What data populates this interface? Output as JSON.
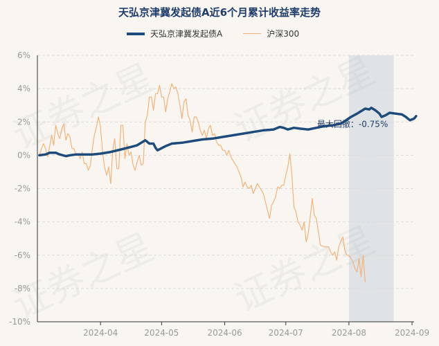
{
  "chart_data": {
    "type": "line",
    "title": "天弘京津冀发起债A近6个月累计收益率走势",
    "ylim": [
      -10,
      6
    ],
    "yticks": [
      "6%",
      "4%",
      "2%",
      "0%",
      "-2%",
      "-4%",
      "-6%",
      "-8%",
      "-10%"
    ],
    "ytick_values": [
      6,
      4,
      2,
      0,
      -2,
      -4,
      -6,
      -8,
      -10
    ],
    "xticks": [
      "2024-04",
      "2024-05",
      "2024-06",
      "2024-07",
      "2024-08",
      "2024-09"
    ],
    "xtick_days": [
      30,
      60,
      91,
      121,
      152,
      183
    ],
    "x_range_days": [
      -1,
      184
    ],
    "series": [
      {
        "name": "天弘京津冀发起债A",
        "color": "#1d4b7c",
        "points": [
          [
            0,
            0
          ],
          [
            3,
            0.05
          ],
          [
            5,
            0.15
          ],
          [
            8,
            0.15
          ],
          [
            10,
            0.05
          ],
          [
            13,
            -0.05
          ],
          [
            15,
            0
          ],
          [
            18,
            0.05
          ],
          [
            22,
            0.05
          ],
          [
            26,
            0.05
          ],
          [
            30,
            0.1
          ],
          [
            35,
            0.2
          ],
          [
            40,
            0.35
          ],
          [
            45,
            0.5
          ],
          [
            48,
            0.6
          ],
          [
            50,
            0.75
          ],
          [
            52,
            0.9
          ],
          [
            54,
            0.7
          ],
          [
            56,
            0.7
          ],
          [
            57,
            0.45
          ],
          [
            58,
            0.3
          ],
          [
            62,
            0.55
          ],
          [
            65,
            0.7
          ],
          [
            70,
            0.75
          ],
          [
            75,
            0.85
          ],
          [
            80,
            0.95
          ],
          [
            85,
            1.0
          ],
          [
            90,
            1.1
          ],
          [
            95,
            1.2
          ],
          [
            100,
            1.3
          ],
          [
            105,
            1.4
          ],
          [
            110,
            1.5
          ],
          [
            115,
            1.55
          ],
          [
            118,
            1.7
          ],
          [
            120,
            1.65
          ],
          [
            122,
            1.55
          ],
          [
            125,
            1.65
          ],
          [
            128,
            1.6
          ],
          [
            132,
            1.55
          ],
          [
            136,
            1.65
          ],
          [
            140,
            1.75
          ],
          [
            144,
            1.8
          ],
          [
            148,
            1.9
          ],
          [
            150,
            2.05
          ],
          [
            153,
            2.3
          ],
          [
            156,
            2.5
          ],
          [
            158,
            2.65
          ],
          [
            160,
            2.8
          ],
          [
            162,
            2.75
          ],
          [
            163,
            2.85
          ],
          [
            165,
            2.7
          ],
          [
            167,
            2.5
          ],
          [
            168,
            2.3
          ],
          [
            170,
            2.4
          ],
          [
            172,
            2.55
          ],
          [
            175,
            2.5
          ],
          [
            178,
            2.45
          ],
          [
            180,
            2.3
          ],
          [
            182,
            2.1
          ],
          [
            184,
            2.2
          ],
          [
            185,
            2.35
          ]
        ]
      },
      {
        "name": "沪深300",
        "color": "#f2b37a",
        "points": [
          [
            0,
            0
          ],
          [
            1,
            0.4
          ],
          [
            2,
            0.7
          ],
          [
            3,
            0.4
          ],
          [
            4,
            -0.1
          ],
          [
            5,
            0.5
          ],
          [
            6,
            1.2
          ],
          [
            7,
            0.6
          ],
          [
            8,
            1.8
          ],
          [
            9,
            1.3
          ],
          [
            10,
            1.0
          ],
          [
            11,
            1.6
          ],
          [
            12,
            1.9
          ],
          [
            13,
            0.9
          ],
          [
            14,
            1.3
          ],
          [
            15,
            1.1
          ],
          [
            16,
            0.4
          ],
          [
            17,
            0.4
          ],
          [
            18,
            0
          ],
          [
            19,
            0.1
          ],
          [
            20,
            -0.2
          ],
          [
            21,
            0.2
          ],
          [
            22,
            -0.5
          ],
          [
            23,
            -0.5
          ],
          [
            24,
            -0.9
          ],
          [
            25,
            -0.6
          ],
          [
            26,
            0.4
          ],
          [
            27,
            1.2
          ],
          [
            28,
            1.7
          ],
          [
            29,
            2.3
          ],
          [
            30,
            1.7
          ],
          [
            31,
            0.2
          ],
          [
            32,
            -0.7
          ],
          [
            33,
            -1.2
          ],
          [
            34,
            -0.7
          ],
          [
            35,
            -1.7
          ],
          [
            36,
            0.3
          ],
          [
            37,
            1.0
          ],
          [
            38,
            -0.8
          ],
          [
            39,
            -0.8
          ],
          [
            40,
            1.8
          ],
          [
            41,
            1.8
          ],
          [
            42,
            -0.2
          ],
          [
            43,
            0.7
          ],
          [
            44,
            0
          ],
          [
            45,
            0.2
          ],
          [
            46,
            -0.6
          ],
          [
            47,
            -0.9
          ],
          [
            48,
            -0.4
          ],
          [
            49,
            0
          ],
          [
            50,
            -0.6
          ],
          [
            51,
            -0.5
          ],
          [
            52,
            2.0
          ],
          [
            53,
            2.4
          ],
          [
            54,
            3.5
          ],
          [
            55,
            3.5
          ],
          [
            56,
            2.7
          ],
          [
            57,
            3.7
          ],
          [
            58,
            3.7
          ],
          [
            59,
            4.2
          ],
          [
            60,
            3.5
          ],
          [
            61,
            3.5
          ],
          [
            62,
            2.6
          ],
          [
            63,
            3.4
          ],
          [
            64,
            3.8
          ],
          [
            65,
            4.3
          ],
          [
            66,
            4.0
          ],
          [
            67,
            4.1
          ],
          [
            68,
            3.7
          ],
          [
            69,
            3.0
          ],
          [
            70,
            2.2
          ],
          [
            71,
            3.2
          ],
          [
            72,
            3.4
          ],
          [
            73,
            2.4
          ],
          [
            74,
            2.1
          ],
          [
            75,
            1.4
          ],
          [
            76,
            2.3
          ],
          [
            77,
            2.3
          ],
          [
            78,
            2.0
          ],
          [
            79,
            1.5
          ],
          [
            80,
            1.2
          ],
          [
            81,
            1.5
          ],
          [
            82,
            1.0
          ],
          [
            83,
            1.6
          ],
          [
            84,
            1.8
          ],
          [
            85,
            1.2
          ],
          [
            86,
            1.3
          ],
          [
            87,
            0.8
          ],
          [
            88,
            0.6
          ],
          [
            89,
            0.6
          ],
          [
            90,
            0.3
          ],
          [
            91,
            0.3
          ],
          [
            92,
            0
          ],
          [
            93,
            0.3
          ],
          [
            94,
            -0.1
          ],
          [
            95,
            -0.3
          ],
          [
            96,
            -0.5
          ],
          [
            97,
            -0.7
          ],
          [
            98,
            -1.0
          ],
          [
            99,
            -1.3
          ],
          [
            100,
            -1.9
          ],
          [
            101,
            -1.6
          ],
          [
            102,
            -1.9
          ],
          [
            103,
            -2.0
          ],
          [
            104,
            -1.8
          ],
          [
            105,
            -2.3
          ],
          [
            106,
            -2.0
          ],
          [
            107,
            -1.7
          ],
          [
            108,
            -1.9
          ],
          [
            109,
            -2.1
          ],
          [
            110,
            -2.3
          ],
          [
            111,
            -2.8
          ],
          [
            112,
            -3.3
          ],
          [
            113,
            -3.8
          ],
          [
            114,
            -3.0
          ],
          [
            115,
            -2.8
          ],
          [
            116,
            -2.5
          ],
          [
            117,
            -1.9
          ],
          [
            118,
            -2.0
          ],
          [
            119,
            -1.8
          ],
          [
            120,
            -1.8
          ],
          [
            121,
            -1.2
          ],
          [
            122,
            -0.7
          ],
          [
            123,
            0.1
          ],
          [
            124,
            -1.2
          ],
          [
            125,
            -3.1
          ],
          [
            126,
            -3.4
          ],
          [
            127,
            -4.0
          ],
          [
            128,
            -4.2
          ],
          [
            129,
            -4.5
          ],
          [
            130,
            -4.0
          ],
          [
            131,
            -5.2
          ],
          [
            132,
            -4.7
          ],
          [
            133,
            -3.7
          ],
          [
            134,
            -2.6
          ],
          [
            135,
            -3.6
          ],
          [
            136,
            -3.8
          ],
          [
            137,
            -4.6
          ],
          [
            138,
            -5.4
          ],
          [
            140,
            -5.5
          ],
          [
            142,
            -5.5
          ],
          [
            143,
            -5.8
          ],
          [
            144,
            -6.0
          ],
          [
            145,
            -5.8
          ],
          [
            146,
            -6.3
          ],
          [
            147,
            -5.5
          ],
          [
            148,
            -5.2
          ],
          [
            149,
            -4.9
          ],
          [
            150,
            -5.7
          ],
          [
            151,
            -6.0
          ],
          [
            152,
            -6.0
          ],
          [
            153,
            -6.2
          ],
          [
            154,
            -6.4
          ],
          [
            155,
            -6.8
          ],
          [
            156,
            -7.0
          ],
          [
            157,
            -6.2
          ],
          [
            158,
            -7.3
          ],
          [
            159,
            -6.0
          ],
          [
            160,
            -7.6
          ]
        ]
      }
    ],
    "drawdown": {
      "label": "最大回撤：-0.75%",
      "start_day": 152,
      "end_day": 174
    }
  },
  "watermark": "证券之星"
}
